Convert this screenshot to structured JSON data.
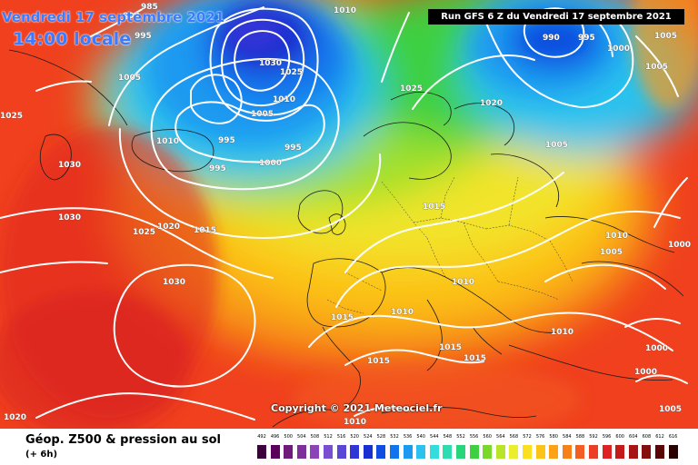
{
  "header": {
    "date_label": "Vendredi 17 septembre 2021",
    "time_label": "14:00 locale",
    "run_label": "Run GFS 6 Z du Vendredi 17 septembre 2021"
  },
  "map": {
    "copyright": "Copyright © 2021 Meteociel.fr",
    "pressure_labels": [
      {
        "text": "1010"
      },
      {
        "text": "995"
      },
      {
        "text": "990"
      },
      {
        "text": "985"
      },
      {
        "text": "1005"
      },
      {
        "text": "1025"
      },
      {
        "text": "1030"
      },
      {
        "text": "1030"
      },
      {
        "text": "1010"
      },
      {
        "text": "995"
      },
      {
        "text": "995"
      },
      {
        "text": "995"
      },
      {
        "text": "1000"
      },
      {
        "text": "1030"
      },
      {
        "text": "1025"
      },
      {
        "text": "1010"
      },
      {
        "text": "1005"
      },
      {
        "text": "1025"
      },
      {
        "text": "1020"
      },
      {
        "text": "990"
      },
      {
        "text": "995"
      },
      {
        "text": "1000"
      },
      {
        "text": "1005"
      },
      {
        "text": "1005"
      },
      {
        "text": "1015"
      },
      {
        "text": "1025"
      },
      {
        "text": "1020"
      },
      {
        "text": "1015"
      },
      {
        "text": "1030"
      },
      {
        "text": "1010"
      },
      {
        "text": "1005"
      },
      {
        "text": "1000"
      },
      {
        "text": "1010"
      },
      {
        "text": "1015"
      },
      {
        "text": "1010"
      },
      {
        "text": "1010"
      },
      {
        "text": "1015"
      },
      {
        "text": "1015"
      },
      {
        "text": "1015"
      },
      {
        "text": "1000"
      },
      {
        "text": "1000"
      },
      {
        "text": "1005"
      },
      {
        "text": "1020"
      },
      {
        "text": "1010"
      },
      {
        "text": "1005"
      }
    ]
  },
  "footer": {
    "title": "Géop. Z500 & pression au sol",
    "subtitle": "(+ 6h)"
  },
  "legend": {
    "items": [
      {
        "value": "492",
        "color": "#3d003d"
      },
      {
        "value": "496",
        "color": "#58005a"
      },
      {
        "value": "500",
        "color": "#6e1b7c"
      },
      {
        "value": "504",
        "color": "#7d2f9a"
      },
      {
        "value": "508",
        "color": "#8c45b8"
      },
      {
        "value": "512",
        "color": "#7a4ed0"
      },
      {
        "value": "516",
        "color": "#5a47d8"
      },
      {
        "value": "520",
        "color": "#3036d6"
      },
      {
        "value": "524",
        "color": "#1a2fd0"
      },
      {
        "value": "528",
        "color": "#0f4ee0"
      },
      {
        "value": "532",
        "color": "#1274ec"
      },
      {
        "value": "536",
        "color": "#1c9af0"
      },
      {
        "value": "540",
        "color": "#2cc2ee"
      },
      {
        "value": "544",
        "color": "#35dcdc"
      },
      {
        "value": "548",
        "color": "#2fdcb0"
      },
      {
        "value": "552",
        "color": "#27d67c"
      },
      {
        "value": "556",
        "color": "#3ed040"
      },
      {
        "value": "560",
        "color": "#7ad82a"
      },
      {
        "value": "564",
        "color": "#b8e42a"
      },
      {
        "value": "568",
        "color": "#eaee2c"
      },
      {
        "value": "572",
        "color": "#fae01e"
      },
      {
        "value": "576",
        "color": "#fcc418"
      },
      {
        "value": "580",
        "color": "#fca214"
      },
      {
        "value": "584",
        "color": "#f8801a"
      },
      {
        "value": "588",
        "color": "#f45e22"
      },
      {
        "value": "592",
        "color": "#ec3e26"
      },
      {
        "value": "596",
        "color": "#dc2222"
      },
      {
        "value": "600",
        "color": "#c41a1a"
      },
      {
        "value": "604",
        "color": "#a81414"
      },
      {
        "value": "608",
        "color": "#840e0e"
      },
      {
        "value": "612",
        "color": "#5a0606"
      },
      {
        "value": "616",
        "color": "#2a0000"
      }
    ]
  },
  "colors": {
    "title_blue": "#3a7bff",
    "isobar": "#ffffff",
    "coastline": "#1a1a1a"
  }
}
